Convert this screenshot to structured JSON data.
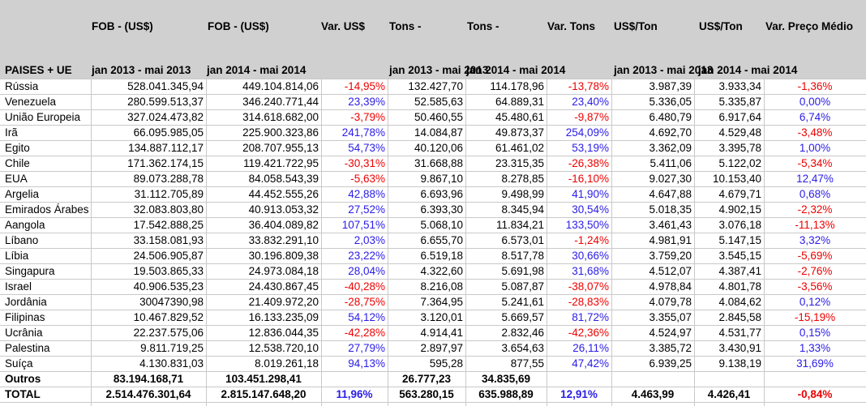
{
  "header": {
    "top": [
      "",
      "FOB  - (US$)",
      "FOB - (US$)",
      "Var. US$",
      "Tons -",
      "Tons -",
      "Var. Tons",
      "US$/Ton",
      "US$/Ton",
      "Var. Preço Médio"
    ],
    "bottom": [
      "PAISES + UE",
      "jan 2013 - mai 2013",
      "jan 2014 - mai 2014",
      "",
      "jan 2013 - mai 2013",
      "jan 2014 - mai 2014",
      "",
      "jan 2013 - mai 2013",
      "jan 2014 - mai 2014",
      ""
    ]
  },
  "colors": {
    "negative": "#ee0000",
    "positive": "#2a1ce6",
    "header_bg": "#d0d0d0",
    "grid": "#c9c9c9"
  },
  "rows": [
    {
      "country": "Rússia",
      "fob13": "528.041.345,94",
      "fob14": "449.104.814,06",
      "var_usd": "-14,95%",
      "tons13": "132.427,70",
      "tons14": "114.178,96",
      "var_tons": "-13,78%",
      "ust13": "3.987,39",
      "ust14": "3.933,34",
      "var_preco": "-1,36%"
    },
    {
      "country": "Venezuela",
      "fob13": "280.599.513,37",
      "fob14": "346.240.771,44",
      "var_usd": "23,39%",
      "tons13": "52.585,63",
      "tons14": "64.889,31",
      "var_tons": "23,40%",
      "ust13": "5.336,05",
      "ust14": "5.335,87",
      "var_preco": "0,00%"
    },
    {
      "country": "União Europeia",
      "fob13": "327.024.473,82",
      "fob14": "314.618.682,00",
      "var_usd": "-3,79%",
      "tons13": "50.460,55",
      "tons14": "45.480,61",
      "var_tons": "-9,87%",
      "ust13": "6.480,79",
      "ust14": "6.917,64",
      "var_preco": "6,74%"
    },
    {
      "country": "Irã",
      "fob13": "66.095.985,05",
      "fob14": "225.900.323,86",
      "var_usd": "241,78%",
      "tons13": "14.084,87",
      "tons14": "49.873,37",
      "var_tons": "254,09%",
      "ust13": "4.692,70",
      "ust14": "4.529,48",
      "var_preco": "-3,48%"
    },
    {
      "country": "Egito",
      "fob13": "134.887.112,17",
      "fob14": "208.707.955,13",
      "var_usd": "54,73%",
      "tons13": "40.120,06",
      "tons14": "61.461,02",
      "var_tons": "53,19%",
      "ust13": "3.362,09",
      "ust14": "3.395,78",
      "var_preco": "1,00%"
    },
    {
      "country": "Chile",
      "fob13": "171.362.174,15",
      "fob14": "119.421.722,95",
      "var_usd": "-30,31%",
      "tons13": "31.668,88",
      "tons14": "23.315,35",
      "var_tons": "-26,38%",
      "ust13": "5.411,06",
      "ust14": "5.122,02",
      "var_preco": "-5,34%"
    },
    {
      "country": "EUA",
      "fob13": "89.073.288,78",
      "fob14": "84.058.543,39",
      "var_usd": "-5,63%",
      "tons13": "9.867,10",
      "tons14": "8.278,85",
      "var_tons": "-16,10%",
      "ust13": "9.027,30",
      "ust14": "10.153,40",
      "var_preco": "12,47%"
    },
    {
      "country": "Argelia",
      "fob13": "31.112.705,89",
      "fob14": "44.452.555,26",
      "var_usd": "42,88%",
      "tons13": "6.693,96",
      "tons14": "9.498,99",
      "var_tons": "41,90%",
      "ust13": "4.647,88",
      "ust14": "4.679,71",
      "var_preco": "0,68%"
    },
    {
      "country": "Emirados Árabes",
      "fob13": "32.083.803,80",
      "fob14": "40.913.053,32",
      "var_usd": "27,52%",
      "tons13": "6.393,30",
      "tons14": "8.345,94",
      "var_tons": "30,54%",
      "ust13": "5.018,35",
      "ust14": "4.902,15",
      "var_preco": "-2,32%"
    },
    {
      "country": "Aangola",
      "fob13": "17.542.888,25",
      "fob14": "36.404.089,82",
      "var_usd": "107,51%",
      "tons13": "5.068,10",
      "tons14": "11.834,21",
      "var_tons": "133,50%",
      "ust13": "3.461,43",
      "ust14": "3.076,18",
      "var_preco": "-11,13%"
    },
    {
      "country": "Líbano",
      "fob13": "33.158.081,93",
      "fob14": "33.832.291,10",
      "var_usd": "2,03%",
      "tons13": "6.655,70",
      "tons14": "6.573,01",
      "var_tons": "-1,24%",
      "ust13": "4.981,91",
      "ust14": "5.147,15",
      "var_preco": "3,32%"
    },
    {
      "country": "Líbia",
      "fob13": "24.506.905,87",
      "fob14": "30.196.809,38",
      "var_usd": "23,22%",
      "tons13": "6.519,18",
      "tons14": "8.517,78",
      "var_tons": "30,66%",
      "ust13": "3.759,20",
      "ust14": "3.545,15",
      "var_preco": "-5,69%"
    },
    {
      "country": "Singapura",
      "fob13": "19.503.865,33",
      "fob14": "24.973.084,18",
      "var_usd": "28,04%",
      "tons13": "4.322,60",
      "tons14": "5.691,98",
      "var_tons": "31,68%",
      "ust13": "4.512,07",
      "ust14": "4.387,41",
      "var_preco": "-2,76%"
    },
    {
      "country": "Israel",
      "fob13": "40.906.535,23",
      "fob14": "24.430.867,45",
      "var_usd": "-40,28%",
      "tons13": "8.216,08",
      "tons14": "5.087,87",
      "var_tons": "-38,07%",
      "ust13": "4.978,84",
      "ust14": "4.801,78",
      "var_preco": "-3,56%"
    },
    {
      "country": "Jordânia",
      "fob13": "30047390,98",
      "fob14": "21.409.972,20",
      "var_usd": "-28,75%",
      "tons13": "7.364,95",
      "tons14": "5.241,61",
      "var_tons": "-28,83%",
      "ust13": "4.079,78",
      "ust14": "4.084,62",
      "var_preco": "0,12%"
    },
    {
      "country": "Filipinas",
      "fob13": "10.467.829,52",
      "fob14": "16.133.235,09",
      "var_usd": "54,12%",
      "tons13": "3.120,01",
      "tons14": "5.669,57",
      "var_tons": "81,72%",
      "ust13": "3.355,07",
      "ust14": "2.845,58",
      "var_preco": "-15,19%"
    },
    {
      "country": "Ucrânia",
      "fob13": "22.237.575,06",
      "fob14": "12.836.044,35",
      "var_usd": "-42,28%",
      "tons13": "4.914,41",
      "tons14": "2.832,46",
      "var_tons": "-42,36%",
      "ust13": "4.524,97",
      "ust14": "4.531,77",
      "var_preco": "0,15%"
    },
    {
      "country": "Palestina",
      "fob13": "9.811.719,25",
      "fob14": "12.538.720,10",
      "var_usd": "27,79%",
      "tons13": "2.897,97",
      "tons14": "3.654,63",
      "var_tons": "26,11%",
      "ust13": "3.385,72",
      "ust14": "3.430,91",
      "var_preco": "1,33%"
    },
    {
      "country": "Suíça",
      "fob13": "4.130.831,03",
      "fob14": "8.019.261,18",
      "var_usd": "94,13%",
      "tons13": "595,28",
      "tons14": "877,55",
      "var_tons": "47,42%",
      "ust13": "6.939,25",
      "ust14": "9.138,19",
      "var_preco": "31,69%"
    }
  ],
  "outros": {
    "country": "Outros",
    "fob13": "83.194.168,71",
    "fob14": "103.451.298,41",
    "var_usd": "",
    "tons13": "26.777,23",
    "tons14": "34.835,69",
    "var_tons": "",
    "ust13": "",
    "ust14": "",
    "var_preco": ""
  },
  "total": {
    "country": "TOTAL",
    "fob13": "2.514.476.301,64",
    "fob14": "2.815.147.648,20",
    "var_usd": "11,96%",
    "tons13": "563.280,15",
    "tons14": "635.988,89",
    "var_tons": "12,91%",
    "ust13": "4.463,99",
    "ust14": "4.426,41",
    "var_preco": "-0,84%"
  }
}
